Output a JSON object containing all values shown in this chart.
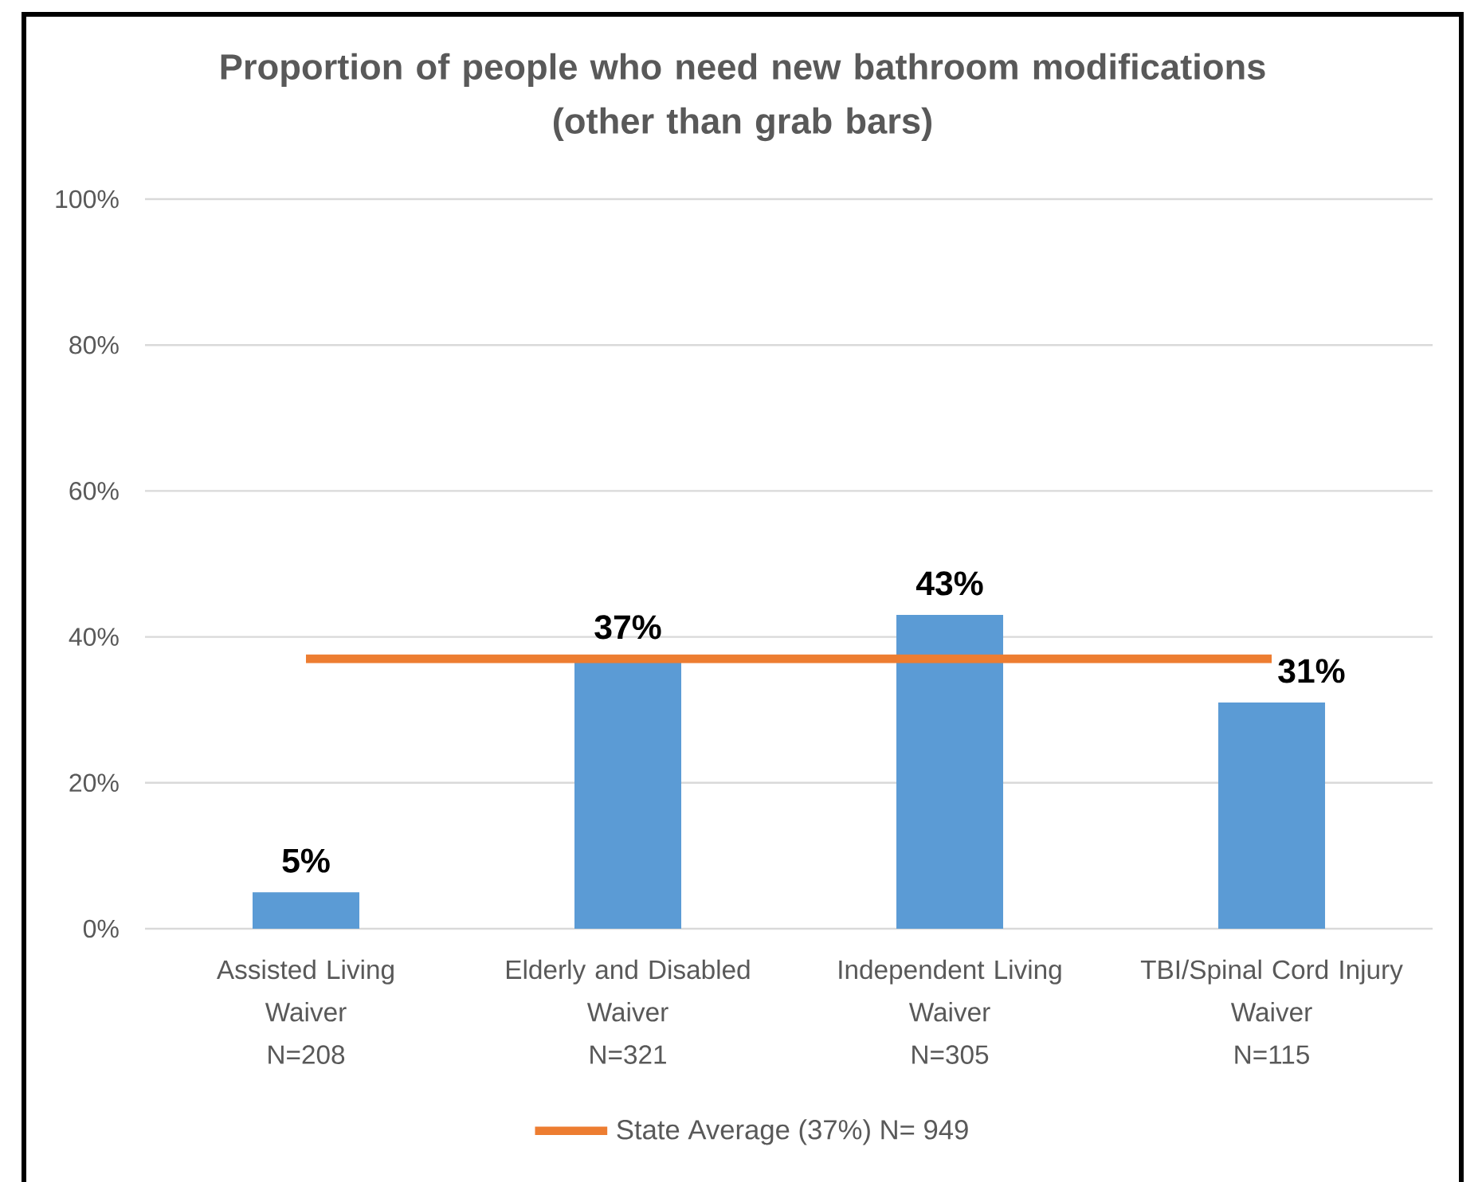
{
  "chart_data": {
    "type": "bar",
    "title": "Proportion of people who need new bathroom modifications\n(other than grab bars)",
    "categories": [
      "Assisted Living\nWaiver\nN=208",
      "Elderly and Disabled\nWaiver\nN=321",
      "Independent Living\nWaiver\nN=305",
      "TBI/Spinal Cord Injury\nWaiver\nN=115"
    ],
    "series": [
      {
        "color": "#5b9bd5",
        "values": [
          5,
          37,
          43,
          31
        ],
        "value_labels": [
          "5%",
          "37%",
          "43%",
          "31%"
        ]
      },
      {
        "type": "line",
        "name": "State Average (37%) N= 949",
        "color": "#ed7d31",
        "values": [
          37,
          37,
          37,
          37
        ]
      }
    ],
    "ylim": [
      0,
      100
    ],
    "yticks": [
      {
        "value": 0,
        "label": "0%"
      },
      {
        "value": 20,
        "label": "20%"
      },
      {
        "value": 40,
        "label": "40%"
      },
      {
        "value": 60,
        "label": "60%"
      },
      {
        "value": 80,
        "label": "80%"
      },
      {
        "value": 100,
        "label": "100%"
      }
    ],
    "grid": "y",
    "legend": "bottom"
  }
}
